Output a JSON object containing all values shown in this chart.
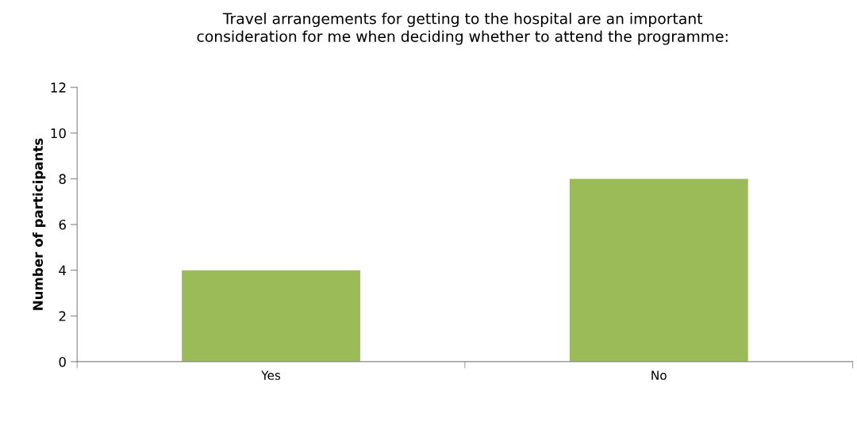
{
  "chart_data": {
    "type": "bar",
    "title": "Travel arrangements for getting to the hospital are an important\nconsideration for me when deciding whether to attend the programme:",
    "ylabel": "Number of participants",
    "categories": [
      "Yes",
      "No"
    ],
    "values": [
      4,
      8
    ],
    "color": "#9bbb59",
    "ylim": [
      0,
      12
    ],
    "yticks": [
      0,
      2,
      4,
      6,
      8,
      10,
      12
    ],
    "grid": false
  }
}
